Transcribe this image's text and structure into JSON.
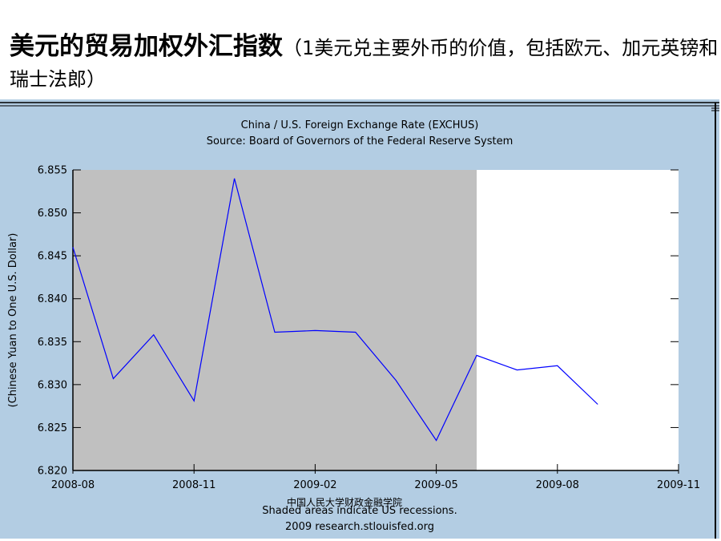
{
  "slide": {
    "title_main": "美元的贸易加权外汇指数",
    "title_paren": "（1美元兑主要外币的价值，包括欧元、加元英镑和瑞士法郎）",
    "watermark": "中国人民大学财政金融学院"
  },
  "colors": {
    "frame_bg": "#b3cde3",
    "plot_bg": "#c0c0c0",
    "line": "#0000ff",
    "border": "#000000"
  },
  "chart_data": {
    "type": "line",
    "title": "China / U.S. Foreign Exchange Rate (EXCHUS)",
    "subtitle": "Source: Board of Governors of the Federal Reserve System",
    "ylabel": "(Chinese Yuan to One U.S. Dollar)",
    "xlabel": "",
    "footer_note": "Shaded areas indicate US recessions.",
    "footer_source": "2009 research.stlouisfed.org",
    "ylim": [
      6.82,
      6.855
    ],
    "y_ticks": [
      "6.820",
      "6.825",
      "6.830",
      "6.835",
      "6.840",
      "6.845",
      "6.850",
      "6.855"
    ],
    "xlim": [
      "2008-08",
      "2009-11"
    ],
    "x_ticks": [
      "2008-08",
      "2008-11",
      "2009-02",
      "2009-05",
      "2009-08",
      "2009-11"
    ],
    "recession_shading": {
      "start": "2008-08",
      "end": "2009-06"
    },
    "series": [
      {
        "x": [
          "2008-08",
          "2008-09",
          "2008-10",
          "2008-11",
          "2008-12",
          "2009-01",
          "2009-02",
          "2009-03",
          "2009-04",
          "2009-05",
          "2009-06",
          "2009-07",
          "2009-08",
          "2009-09"
        ],
        "values": [
          6.846,
          6.8307,
          6.8358,
          6.8281,
          6.854,
          6.8361,
          6.8363,
          6.8361,
          6.8305,
          6.8235,
          6.8334,
          6.8317,
          6.8322,
          6.8277
        ]
      }
    ],
    "grid": true
  }
}
